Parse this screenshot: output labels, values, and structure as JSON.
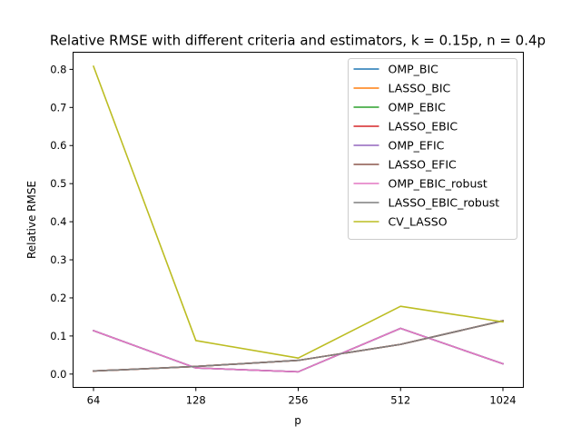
{
  "chart_data": {
    "type": "line",
    "title": "Relative RMSE with different criteria and estimators, k = 0.15p, n = 0.4p",
    "xlabel": "p",
    "ylabel": "Relative RMSE",
    "x": [
      64,
      128,
      256,
      512,
      1024
    ],
    "x_tick_labels": [
      "64",
      "128",
      "256",
      "512",
      "1024"
    ],
    "x_scale": "log2",
    "ylim": [
      -0.035,
      0.845
    ],
    "y_ticks": [
      0.0,
      0.1,
      0.2,
      0.3,
      0.4,
      0.5,
      0.6,
      0.7,
      0.8
    ],
    "y_tick_labels": [
      "0.0",
      "0.1",
      "0.2",
      "0.3",
      "0.4",
      "0.5",
      "0.6",
      "0.7",
      "0.8"
    ],
    "grid": false,
    "legend_position": "top-right",
    "series": [
      {
        "name": "OMP_BIC",
        "color": "#1f77b4",
        "values": [
          0.114,
          0.016,
          0.006,
          0.12,
          0.027
        ]
      },
      {
        "name": "LASSO_BIC",
        "color": "#ff7f0e",
        "values": [
          0.008,
          0.02,
          0.036,
          0.078,
          0.14
        ]
      },
      {
        "name": "OMP_EBIC",
        "color": "#2ca02c",
        "values": [
          0.114,
          0.016,
          0.006,
          0.12,
          0.027
        ]
      },
      {
        "name": "LASSO_EBIC",
        "color": "#d62728",
        "values": [
          0.008,
          0.02,
          0.036,
          0.078,
          0.14
        ]
      },
      {
        "name": "OMP_EFIC",
        "color": "#9467bd",
        "values": [
          0.114,
          0.016,
          0.006,
          0.12,
          0.027
        ]
      },
      {
        "name": "LASSO_EFIC",
        "color": "#8c564b",
        "values": [
          0.008,
          0.02,
          0.036,
          0.078,
          0.14
        ]
      },
      {
        "name": "OMP_EBIC_robust",
        "color": "#e377c2",
        "values": [
          0.114,
          0.016,
          0.006,
          0.12,
          0.027
        ]
      },
      {
        "name": "LASSO_EBIC_robust",
        "color": "#7f7f7f",
        "values": [
          0.008,
          0.02,
          0.036,
          0.078,
          0.14
        ]
      },
      {
        "name": "CV_LASSO",
        "color": "#bcbd22",
        "values": [
          0.808,
          0.088,
          0.042,
          0.178,
          0.137
        ]
      }
    ]
  }
}
